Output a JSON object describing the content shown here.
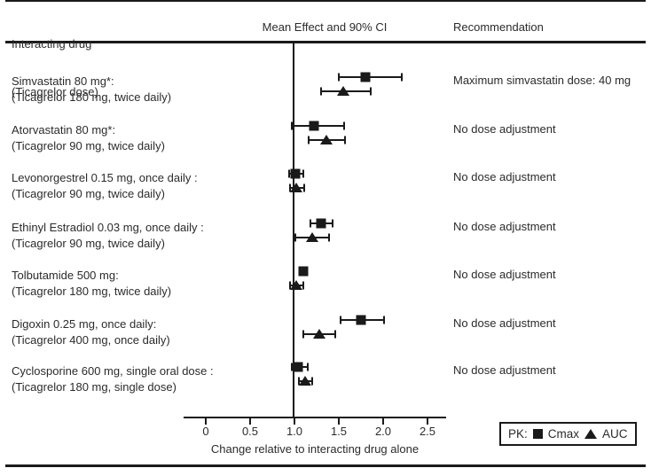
{
  "header": {
    "interacting_drug_line1": "Interacting drug",
    "interacting_drug_line2": "(Ticagrelor dose)",
    "effect_column": "Mean Effect and 90% CI",
    "recommendation_column": "Recommendation"
  },
  "legend": {
    "prefix": "PK:",
    "cmax_label": "Cmax",
    "auc_label": "AUC"
  },
  "colors": {
    "ink": "#1a1a1a",
    "background": "#ffffff"
  },
  "chart_data": {
    "type": "scatter",
    "subtype": "forest-plot",
    "title": "Mean Effect and 90% CI",
    "xlabel": "Change relative to interacting drug alone",
    "xlim": [
      -0.25,
      2.7
    ],
    "x_ticks": [
      0,
      0.5,
      1.0,
      1.5,
      2.0,
      2.5
    ],
    "x_tick_labels": [
      "0",
      "0.5",
      "1.0",
      "1.5",
      "2.0",
      "2.5"
    ],
    "reference_line_x": 1.0,
    "grid": false,
    "legend_position": "bottom-right",
    "series_legend": [
      {
        "name": "Cmax",
        "marker": "square"
      },
      {
        "name": "AUC",
        "marker": "triangle"
      }
    ],
    "rows": [
      {
        "drug": "Simvastatin 80 mg*:",
        "ticagrelor_dose": "(Ticagrelor 180 mg, twice daily)",
        "recommendation": "Maximum simvastatin dose: 40 mg",
        "cmax": {
          "mean": 1.8,
          "ci_low": 1.5,
          "ci_high": 2.21
        },
        "auc": {
          "mean": 1.55,
          "ci_low": 1.3,
          "ci_high": 1.86
        }
      },
      {
        "drug": "Atorvastatin 80 mg*:",
        "ticagrelor_dose": "(Ticagrelor 90 mg, twice daily)",
        "recommendation": "No dose adjustment",
        "cmax": {
          "mean": 1.22,
          "ci_low": 0.97,
          "ci_high": 1.56
        },
        "auc": {
          "mean": 1.36,
          "ci_low": 1.16,
          "ci_high": 1.57
        }
      },
      {
        "drug": "Levonorgestrel 0.15 mg, once daily :",
        "ticagrelor_dose": "(Ticagrelor 90 mg, twice daily)",
        "recommendation": "No dose adjustment",
        "cmax": {
          "mean": 1.01,
          "ci_low": 0.94,
          "ci_high": 1.1
        },
        "auc": {
          "mean": 1.02,
          "ci_low": 0.95,
          "ci_high": 1.11
        }
      },
      {
        "drug": "Ethinyl Estradiol 0.03 mg, once daily :",
        "ticagrelor_dose": "(Ticagrelor 90 mg, twice daily)",
        "recommendation": "No dose adjustment",
        "cmax": {
          "mean": 1.3,
          "ci_low": 1.18,
          "ci_high": 1.43
        },
        "auc": {
          "mean": 1.2,
          "ci_low": 1.01,
          "ci_high": 1.39
        }
      },
      {
        "drug": "Tolbutamide 500 mg:",
        "ticagrelor_dose": "(Ticagrelor 180 mg, twice daily)",
        "recommendation": "No dose adjustment",
        "cmax": {
          "mean": 1.1,
          "ci_low": 1.1,
          "ci_high": 1.1
        },
        "auc": {
          "mean": 1.02,
          "ci_low": 0.95,
          "ci_high": 1.1
        }
      },
      {
        "drug": "Digoxin 0.25 mg, once daily:",
        "ticagrelor_dose": "(Ticagrelor 400 mg, once daily)",
        "recommendation": "No dose adjustment",
        "cmax": {
          "mean": 1.75,
          "ci_low": 1.52,
          "ci_high": 2.01
        },
        "auc": {
          "mean": 1.28,
          "ci_low": 1.1,
          "ci_high": 1.46
        }
      },
      {
        "drug": "Cyclosporine 600 mg, single oral dose :",
        "ticagrelor_dose": "(Ticagrelor 180 mg, single dose)",
        "recommendation": "No dose adjustment",
        "cmax": {
          "mean": 1.04,
          "ci_low": 0.97,
          "ci_high": 1.15
        },
        "auc": {
          "mean": 1.12,
          "ci_low": 1.05,
          "ci_high": 1.2
        }
      }
    ]
  }
}
